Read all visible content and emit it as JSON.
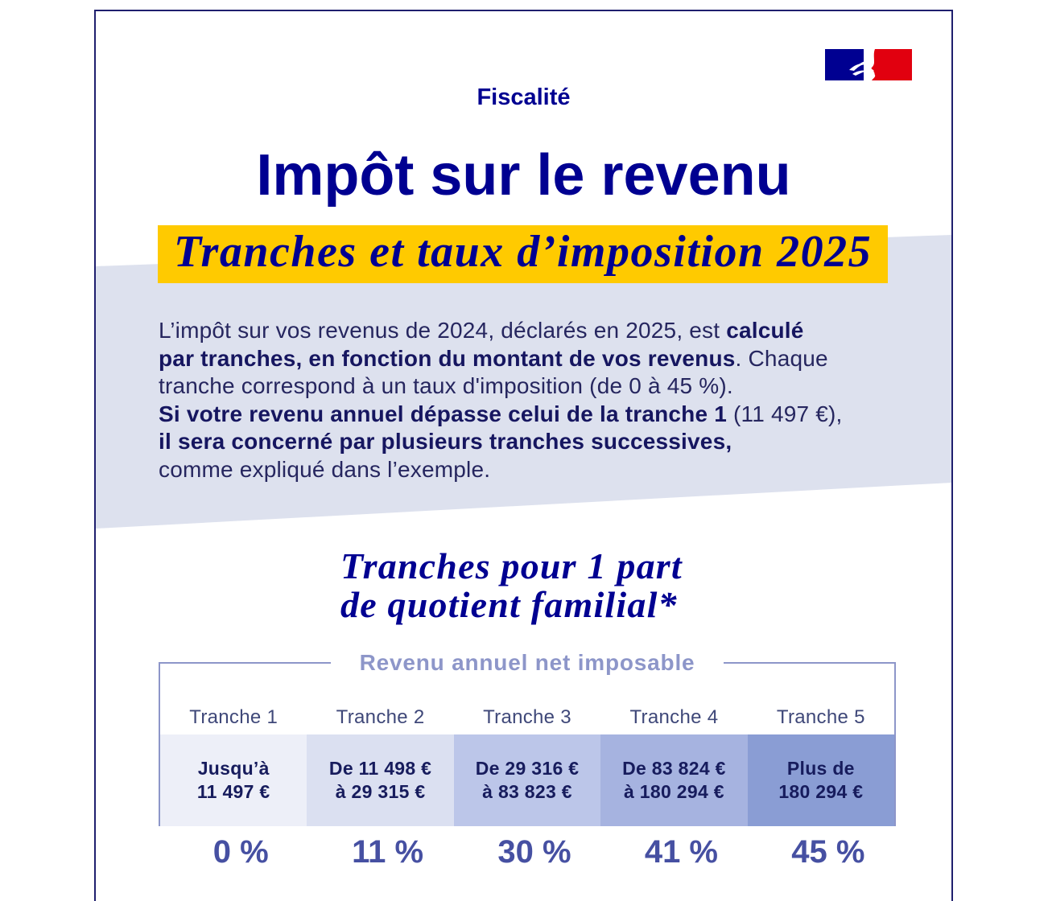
{
  "header": {
    "category": "Fiscalité",
    "title": "Impôt sur le revenu",
    "subtitle": "Tranches et taux d’imposition 2025"
  },
  "logo": {
    "icon": "marianne-republique-francaise-logo"
  },
  "intro": {
    "lines": [
      [
        "L’impôt sur vos revenus de 2024, déclarés en 2025, est ",
        "calculé"
      ],
      [
        "par tranches, en fonction du montant de vos revenus",
        ". Chaque"
      ],
      [
        "tranche correspond à un taux d'imposition (de 0 à 45 %)."
      ],
      [
        "Si votre revenu annuel dépasse celui de la tranche 1",
        " (11 497 €),"
      ],
      [
        "il sera concerné par plusieurs tranches successives,"
      ],
      [
        "comme expliqué dans l’exemple."
      ]
    ]
  },
  "brackets": {
    "title_lines": [
      "Tranches pour 1 part",
      "de quotient familial*"
    ],
    "caption": "Revenu annuel net imposable",
    "tranches": [
      {
        "label": "Tranche 1",
        "range": [
          "Jusqu’à",
          "11 497 €"
        ],
        "rate": "0 %",
        "color": "#edeff8"
      },
      {
        "label": "Tranche 2",
        "range": [
          "De 11 498 €",
          "à 29 315 €"
        ],
        "rate": "11 %",
        "color": "#dbe0f1"
      },
      {
        "label": "Tranche 3",
        "range": [
          "De 29 316 €",
          "à 83 823 €"
        ],
        "rate": "30 %",
        "color": "#bcc6e9"
      },
      {
        "label": "Tranche 4",
        "range": [
          "De 83 824 €",
          "à 180 294 €"
        ],
        "rate": "41 %",
        "color": "#a6b3e0"
      },
      {
        "label": "Tranche 5",
        "range": [
          "Plus de",
          "180 294 €"
        ],
        "rate": "45 %",
        "color": "#8a9dd4"
      }
    ]
  },
  "palette": {
    "primary": "#000091",
    "highlight": "#ffca00",
    "band": "#dde1ee",
    "frame": "#1f1f6e",
    "muted": "#8d96c9",
    "rate": "#4650a2",
    "flag_blue": "#000091",
    "flag_red": "#e1000f"
  }
}
